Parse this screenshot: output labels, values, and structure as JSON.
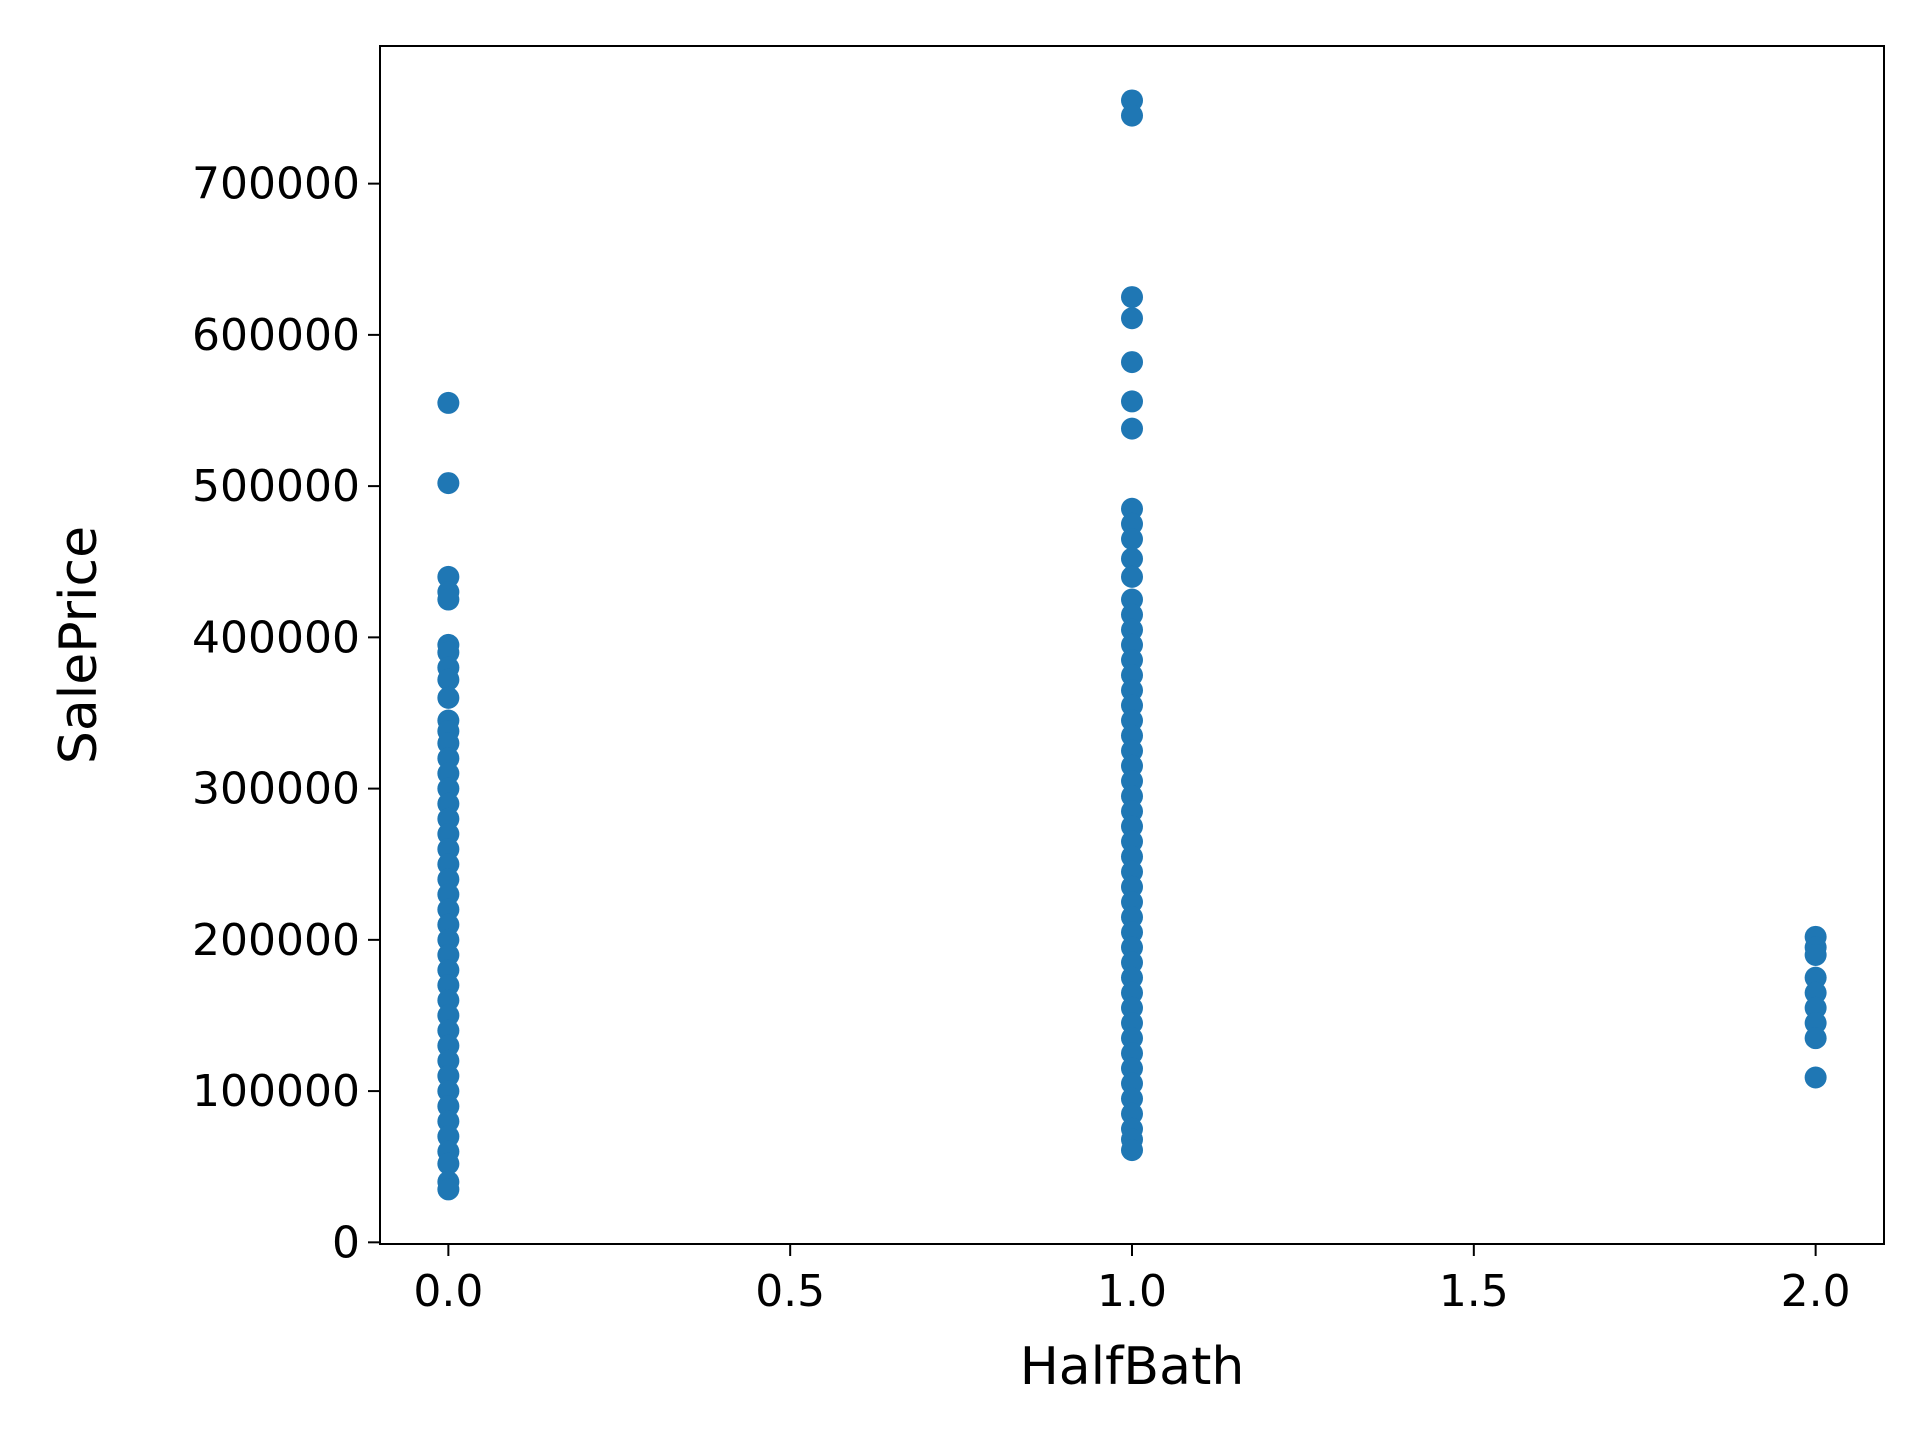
{
  "chart_data": {
    "type": "scatter",
    "x_label": "HalfBath",
    "y_label": "SalePrice",
    "color": "#1f77b4",
    "xlim": [
      -0.1,
      2.1
    ],
    "xticks": [
      {
        "value": 0,
        "label": "0.0"
      },
      {
        "value": 0.5,
        "label": "0.5"
      },
      {
        "value": 1,
        "label": "1.0"
      },
      {
        "value": 1.5,
        "label": "1.5"
      },
      {
        "value": 2,
        "label": "2.0"
      }
    ],
    "ylim": [
      -1100,
      791000
    ],
    "yticks": [
      0,
      100000,
      200000,
      300000,
      400000,
      500000,
      600000,
      700000
    ],
    "x": [
      0,
      0,
      0,
      0,
      0,
      0,
      0,
      0,
      0,
      0,
      0,
      0,
      0,
      0,
      0,
      0,
      0,
      0,
      0,
      0,
      0,
      0,
      0,
      0,
      0,
      0,
      0,
      0,
      0,
      0,
      0,
      0,
      0,
      0,
      0,
      0,
      0,
      0,
      0,
      0,
      0,
      0,
      0,
      1,
      1,
      1,
      1,
      1,
      1,
      1,
      1,
      1,
      1,
      1,
      1,
      1,
      1,
      1,
      1,
      1,
      1,
      1,
      1,
      1,
      1,
      1,
      1,
      1,
      1,
      1,
      1,
      1,
      1,
      1,
      1,
      1,
      1,
      1,
      1,
      1,
      1,
      1,
      1,
      1,
      1,
      1,
      1,
      1,
      1,
      1,
      1,
      1,
      1,
      2,
      2,
      2,
      2,
      2,
      2,
      2,
      2,
      2
    ],
    "values": [
      555000,
      502000,
      440000,
      430000,
      425000,
      395000,
      390000,
      380000,
      372000,
      360000,
      345000,
      338000,
      330000,
      320000,
      310000,
      300000,
      290000,
      280000,
      270000,
      260000,
      250000,
      240000,
      230000,
      220000,
      210000,
      200000,
      190000,
      180000,
      170000,
      160000,
      150000,
      140000,
      130000,
      120000,
      110000,
      100000,
      90000,
      80000,
      70000,
      60000,
      52000,
      40000,
      35000,
      755000,
      745000,
      625000,
      611000,
      582000,
      556000,
      538000,
      485000,
      475000,
      465000,
      452000,
      440000,
      425000,
      415000,
      405000,
      395000,
      385000,
      375000,
      365000,
      355000,
      345000,
      335000,
      325000,
      315000,
      305000,
      295000,
      285000,
      275000,
      265000,
      255000,
      245000,
      235000,
      225000,
      215000,
      205000,
      195000,
      185000,
      175000,
      165000,
      155000,
      145000,
      135000,
      125000,
      115000,
      105000,
      95000,
      85000,
      75000,
      68000,
      61000,
      202000,
      195000,
      190000,
      175000,
      165000,
      155000,
      145000,
      135000,
      109000
    ]
  }
}
